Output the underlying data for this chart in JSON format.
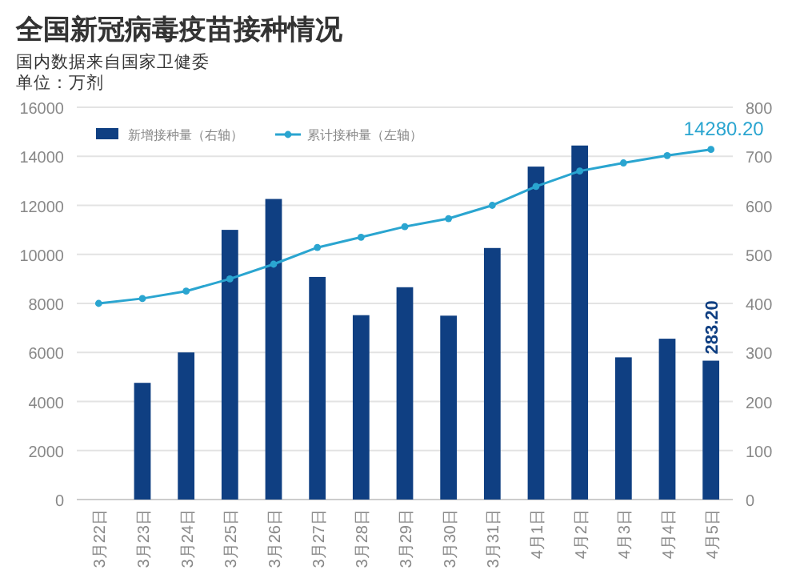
{
  "chart_data": {
    "type": "bar",
    "title": "全国新冠病毒疫苗接种情况",
    "subtitle": "国内数据来自国家卫健委",
    "annotations": [
      "单位：万剂"
    ],
    "categories": [
      "3月22日",
      "3月23日",
      "3月24日",
      "3月25日",
      "3月26日",
      "3月27日",
      "3月28日",
      "3月29日",
      "3月30日",
      "3月31日",
      "4月1日",
      "4月2日",
      "4月3日",
      "4月4日",
      "4月5日"
    ],
    "series": [
      {
        "name": "新增接种量（右轴）",
        "axis": "y2",
        "color": "#0f3f82",
        "values": [
          null,
          238,
          300,
          550,
          613,
          454,
          376,
          433,
          375,
          513,
          679,
          722,
          290,
          328,
          283.2
        ],
        "value_labels": [
          null,
          null,
          null,
          null,
          null,
          null,
          null,
          null,
          null,
          null,
          null,
          null,
          null,
          null,
          "283.20"
        ]
      },
      {
        "name": "累计接种量（左轴）",
        "type": "line",
        "axis": "y",
        "color": "#2aa5d0",
        "marker": "circle",
        "values": [
          8000,
          8200,
          8500,
          9000,
          9600,
          10280,
          10700,
          11130,
          11460,
          12000,
          12770,
          13400,
          13730,
          14030,
          14280.2
        ],
        "value_labels": [
          null,
          null,
          null,
          null,
          null,
          null,
          null,
          null,
          null,
          null,
          null,
          null,
          null,
          null,
          "14280.20"
        ]
      }
    ],
    "ylim": [
      0,
      16000
    ],
    "yticks": [
      0,
      2000,
      4000,
      6000,
      8000,
      10000,
      12000,
      14000,
      16000
    ],
    "y2lim": [
      0,
      800
    ],
    "y2ticks": [
      0,
      100,
      200,
      300,
      400,
      500,
      600,
      700,
      800
    ],
    "grid": "y",
    "legend": "top left"
  }
}
